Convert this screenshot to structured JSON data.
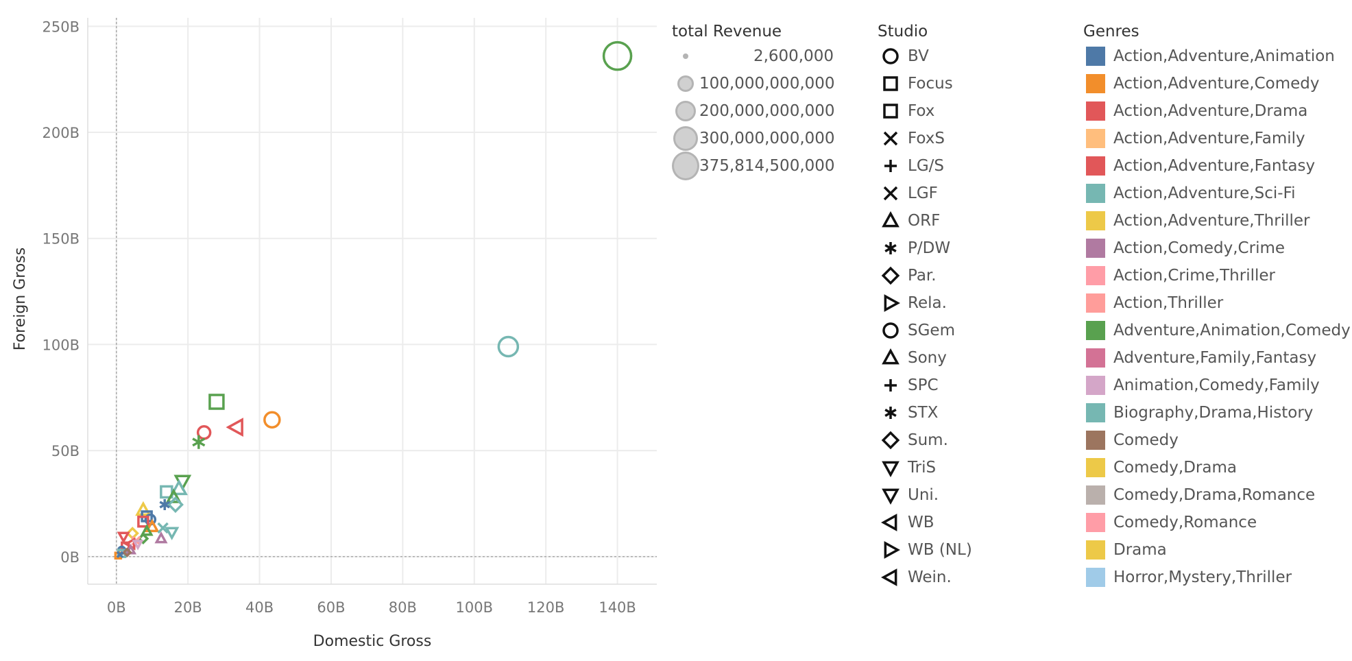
{
  "chart_data": {
    "type": "scatter",
    "xlabel": "Domestic Gross",
    "ylabel": "Foreign Gross",
    "x_ticks": [
      "0B",
      "20B",
      "40B",
      "60B",
      "80B",
      "100B",
      "120B",
      "140B"
    ],
    "y_ticks": [
      "0B",
      "50B",
      "100B",
      "150B",
      "200B",
      "250B"
    ],
    "xlim": [
      -8,
      151
    ],
    "ylim": [
      -13,
      254
    ],
    "grid": true,
    "points": [
      {
        "x": 140,
        "y": 236,
        "shape": "circle",
        "color": "#59a14f",
        "r": 20
      },
      {
        "x": 109.5,
        "y": 99,
        "shape": "circle",
        "color": "#76b7b2",
        "r": 14
      },
      {
        "x": 43.5,
        "y": 64.5,
        "shape": "circle",
        "color": "#f28e2b",
        "r": 11
      },
      {
        "x": 28,
        "y": 73,
        "shape": "square",
        "color": "#59a14f",
        "r": 10
      },
      {
        "x": 33.5,
        "y": 61,
        "shape": "triangle-left",
        "color": "#e15759",
        "r": 10
      },
      {
        "x": 24.5,
        "y": 58.5,
        "shape": "circle",
        "color": "#e15759",
        "r": 9
      },
      {
        "x": 23,
        "y": 54,
        "shape": "asterisk",
        "color": "#59a14f",
        "r": 10
      },
      {
        "x": 18.5,
        "y": 35.5,
        "shape": "triangle-down",
        "color": "#59a14f",
        "r": 9
      },
      {
        "x": 17.5,
        "y": 32,
        "shape": "triangle-up",
        "color": "#76b7b2",
        "r": 9
      },
      {
        "x": 14,
        "y": 30.5,
        "shape": "square",
        "color": "#76b7b2",
        "r": 8
      },
      {
        "x": 16,
        "y": 28,
        "shape": "triangle-up",
        "color": "#59a14f",
        "r": 8
      },
      {
        "x": 16.5,
        "y": 24.5,
        "shape": "diamond",
        "color": "#76b7b2",
        "r": 8
      },
      {
        "x": 13.5,
        "y": 24.5,
        "shape": "asterisk",
        "color": "#4e79a7",
        "r": 8
      },
      {
        "x": 7.5,
        "y": 22,
        "shape": "triangle-up",
        "color": "#edc948",
        "r": 8
      },
      {
        "x": 8.5,
        "y": 19,
        "shape": "square",
        "color": "#4e79a7",
        "r": 7
      },
      {
        "x": 9.5,
        "y": 17.5,
        "shape": "circle",
        "color": "#4e79a7",
        "r": 7
      },
      {
        "x": 7.5,
        "y": 16.5,
        "shape": "square",
        "color": "#e15759",
        "r": 7
      },
      {
        "x": 10,
        "y": 14,
        "shape": "triangle-up",
        "color": "#f28e2b",
        "r": 7
      },
      {
        "x": 13,
        "y": 13.5,
        "shape": "x",
        "color": "#76b7b2",
        "r": 7
      },
      {
        "x": 15.5,
        "y": 11.5,
        "shape": "triangle-down",
        "color": "#76b7b2",
        "r": 7
      },
      {
        "x": 8.5,
        "y": 12,
        "shape": "triangle-up",
        "color": "#59a14f",
        "r": 6
      },
      {
        "x": 4.5,
        "y": 11,
        "shape": "diamond",
        "color": "#edc948",
        "r": 6
      },
      {
        "x": 12.5,
        "y": 8.5,
        "shape": "triangle-up",
        "color": "#b07aa1",
        "r": 6
      },
      {
        "x": 7.5,
        "y": 8.5,
        "shape": "diamond",
        "color": "#59a14f",
        "r": 5
      },
      {
        "x": 2,
        "y": 9.5,
        "shape": "triangle-down",
        "color": "#e15759",
        "r": 6
      },
      {
        "x": 5.5,
        "y": 7.5,
        "shape": "x",
        "color": "#ff9d9a",
        "r": 6
      },
      {
        "x": 4,
        "y": 6,
        "shape": "triangle-left",
        "color": "#e15759",
        "r": 6
      },
      {
        "x": 2.5,
        "y": 5,
        "shape": "square",
        "color": "#e15759",
        "r": 5
      },
      {
        "x": 6,
        "y": 6,
        "shape": "triangle-down",
        "color": "#d4a6c8",
        "r": 5
      },
      {
        "x": 4,
        "y": 3,
        "shape": "triangle-up",
        "color": "#b07aa1",
        "r": 5
      },
      {
        "x": 1.5,
        "y": 3,
        "shape": "circle",
        "color": "#4e79a7",
        "r": 5
      },
      {
        "x": 1.5,
        "y": 1.5,
        "shape": "square",
        "color": "#76b7b2",
        "r": 5
      },
      {
        "x": 0.5,
        "y": 0.5,
        "shape": "square",
        "color": "#f28e2b",
        "r": 4
      },
      {
        "x": 3,
        "y": 2,
        "shape": "diamond",
        "color": "#9c755f",
        "r": 4
      },
      {
        "x": 1,
        "y": 1,
        "shape": "x",
        "color": "#4e79a7",
        "r": 4
      }
    ]
  },
  "legends": {
    "size": {
      "title": "total Revenue",
      "items": [
        {
          "label": "2,600,000",
          "d": 8
        },
        {
          "label": "100,000,000,000",
          "d": 24
        },
        {
          "label": "200,000,000,000",
          "d": 30
        },
        {
          "label": "300,000,000,000",
          "d": 36
        },
        {
          "label": "375,814,500,000",
          "d": 42
        }
      ]
    },
    "studio": {
      "title": "Studio",
      "items": [
        {
          "label": "BV",
          "shape": "circle"
        },
        {
          "label": "Focus",
          "shape": "square"
        },
        {
          "label": "Fox",
          "shape": "square"
        },
        {
          "label": "FoxS",
          "shape": "x"
        },
        {
          "label": "LG/S",
          "shape": "plus"
        },
        {
          "label": "LGF",
          "shape": "x"
        },
        {
          "label": "ORF",
          "shape": "triangle-up"
        },
        {
          "label": "P/DW",
          "shape": "asterisk"
        },
        {
          "label": "Par.",
          "shape": "diamond"
        },
        {
          "label": "Rela.",
          "shape": "triangle-right"
        },
        {
          "label": "SGem",
          "shape": "circle"
        },
        {
          "label": "Sony",
          "shape": "triangle-up"
        },
        {
          "label": "SPC",
          "shape": "plus"
        },
        {
          "label": "STX",
          "shape": "asterisk"
        },
        {
          "label": "Sum.",
          "shape": "diamond"
        },
        {
          "label": "TriS",
          "shape": "triangle-down"
        },
        {
          "label": "Uni.",
          "shape": "triangle-down"
        },
        {
          "label": "WB",
          "shape": "triangle-left"
        },
        {
          "label": "WB (NL)",
          "shape": "triangle-right"
        },
        {
          "label": "Wein.",
          "shape": "triangle-left"
        }
      ]
    },
    "genres": {
      "title": "Genres",
      "items": [
        {
          "label": "Action,Adventure,Animation",
          "color": "#4e79a7"
        },
        {
          "label": "Action,Adventure,Comedy",
          "color": "#f28e2b"
        },
        {
          "label": "Action,Adventure,Drama",
          "color": "#e15759"
        },
        {
          "label": "Action,Adventure,Family",
          "color": "#ffbe7d"
        },
        {
          "label": "Action,Adventure,Fantasy",
          "color": "#e15759"
        },
        {
          "label": "Action,Adventure,Sci-Fi",
          "color": "#76b7b2"
        },
        {
          "label": "Action,Adventure,Thriller",
          "color": "#edc948"
        },
        {
          "label": "Action,Comedy,Crime",
          "color": "#b07aa1"
        },
        {
          "label": "Action,Crime,Thriller",
          "color": "#ff9da7"
        },
        {
          "label": "Action,Thriller",
          "color": "#ff9d9a"
        },
        {
          "label": "Adventure,Animation,Comedy",
          "color": "#59a14f"
        },
        {
          "label": "Adventure,Family,Fantasy",
          "color": "#d37295"
        },
        {
          "label": "Animation,Comedy,Family",
          "color": "#d4a6c8"
        },
        {
          "label": "Biography,Drama,History",
          "color": "#76b7b2"
        },
        {
          "label": "Comedy",
          "color": "#9c755f"
        },
        {
          "label": "Comedy,Drama",
          "color": "#edc948"
        },
        {
          "label": "Comedy,Drama,Romance",
          "color": "#bab0ac"
        },
        {
          "label": "Comedy,Romance",
          "color": "#ff9da7"
        },
        {
          "label": "Drama",
          "color": "#edc948"
        },
        {
          "label": "Horror,Mystery,Thriller",
          "color": "#a0cbe8"
        }
      ]
    }
  }
}
